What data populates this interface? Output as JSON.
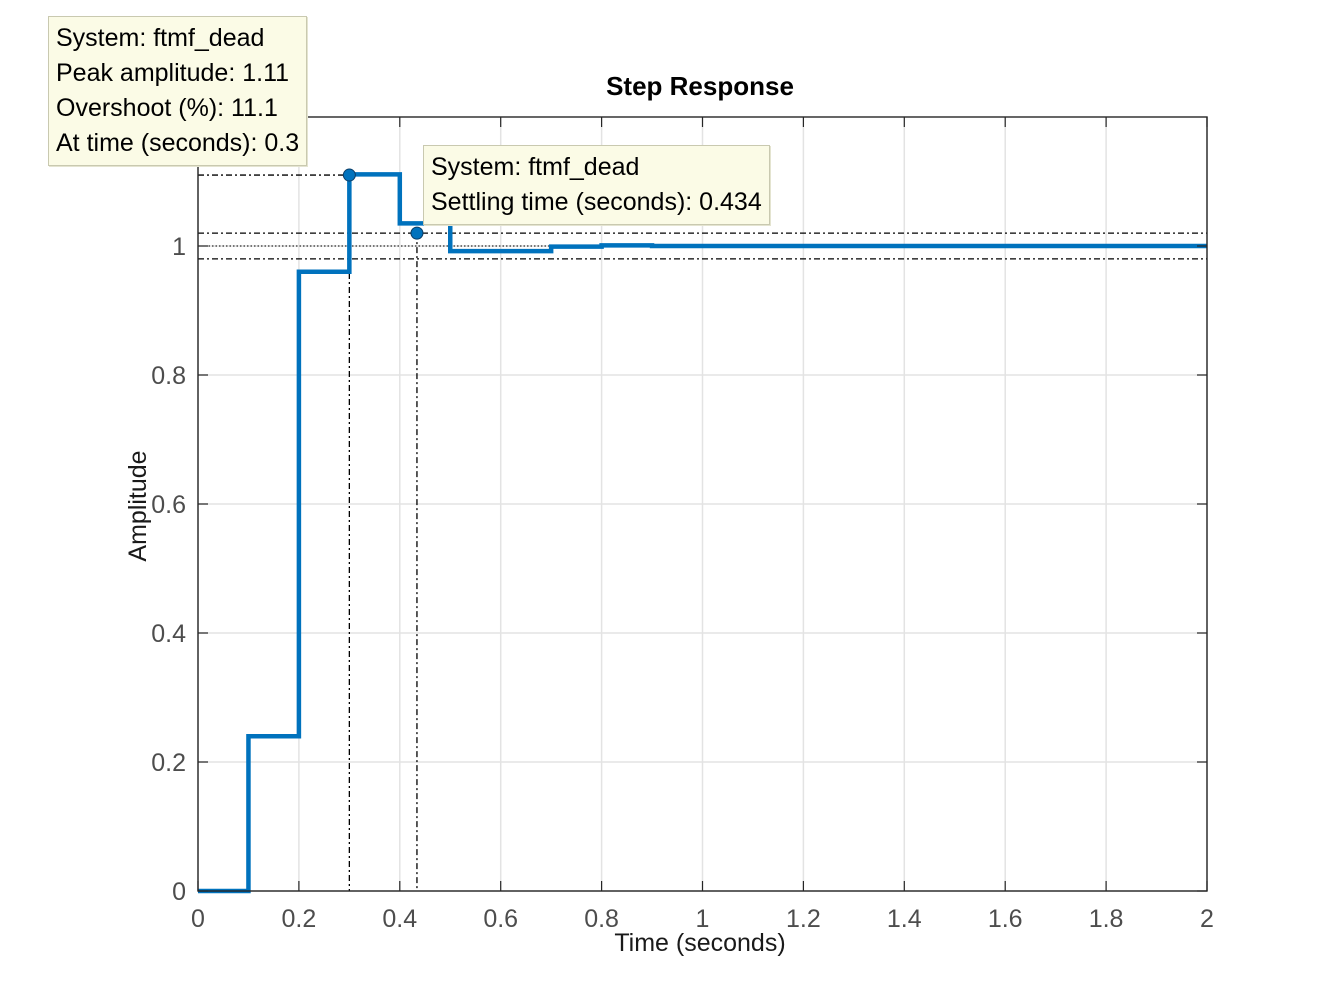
{
  "chart_data": {
    "type": "line",
    "step": true,
    "title": "Step Response",
    "xlabel": "Time (seconds)",
    "ylabel": "Amplitude",
    "xlim": [
      0,
      2
    ],
    "ylim": [
      0,
      1.2
    ],
    "grid": true,
    "xticks": [
      "0",
      "0.2",
      "0.4",
      "0.6",
      "0.8",
      "1",
      "1.2",
      "1.4",
      "1.6",
      "1.8",
      "2"
    ],
    "yticks": [
      "0",
      "0.2",
      "0.4",
      "0.6",
      "0.8",
      "1"
    ],
    "line_color": "#0072bd",
    "series": [
      {
        "name": "ftmf_dead",
        "x": [
          0,
          0.1,
          0.2,
          0.3,
          0.4,
          0.5,
          0.6,
          0.7,
          0.8,
          0.9,
          1.0,
          1.2,
          1.4,
          1.6,
          1.8,
          2.0
        ],
        "y": [
          0,
          0.24,
          0.96,
          1.111,
          1.035,
          0.992,
          0.992,
          0.999,
          1.001,
          1.0,
          1.0,
          1.0,
          1.0,
          1.0,
          1.0,
          1.0
        ]
      }
    ],
    "settling_band": [
      0.98,
      1.02
    ],
    "final_value": 1.0,
    "datatips": [
      {
        "x": 0.3,
        "y": 1.11,
        "lines": [
          "System: ftmf_dead",
          "Peak amplitude: 1.11",
          "Overshoot (%): 11.1",
          "At time (seconds): 0.3"
        ]
      },
      {
        "x": 0.434,
        "y": 1.02,
        "lines": [
          "System: ftmf_dead",
          "Settling time (seconds): 0.434"
        ]
      }
    ]
  }
}
